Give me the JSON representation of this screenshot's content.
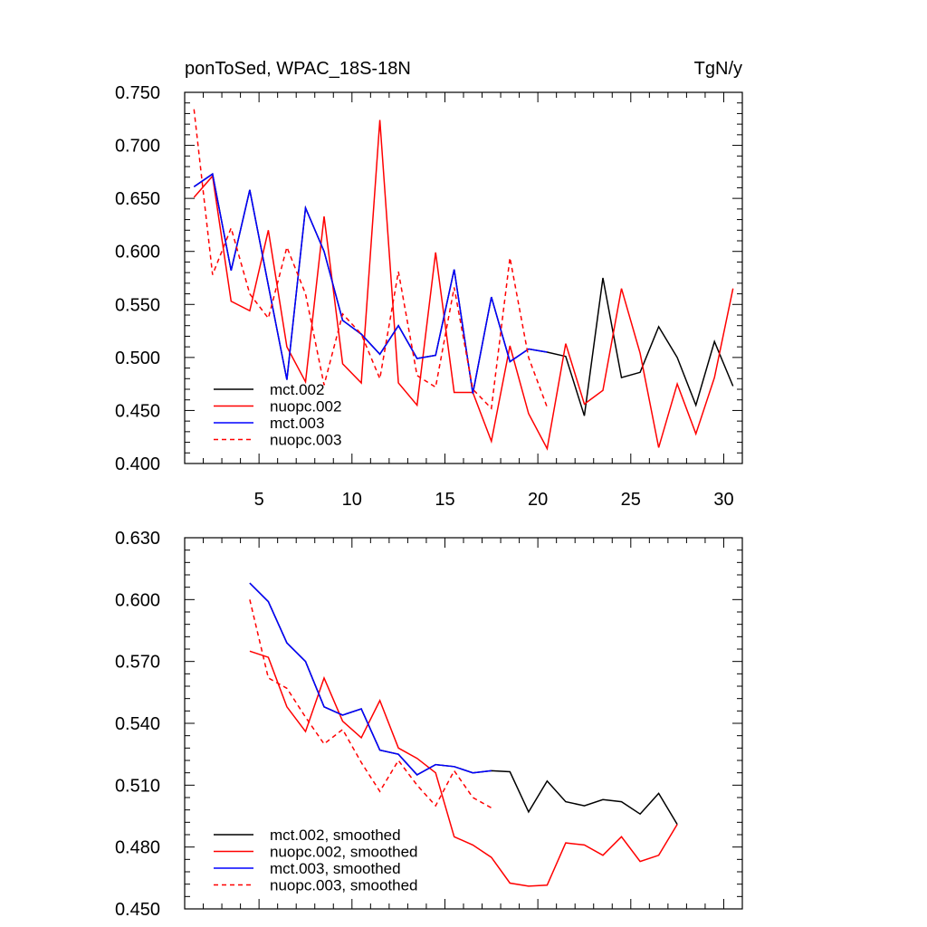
{
  "colors": {
    "mct002": "#000000",
    "nuopc002": "#ff0000",
    "mct003": "#0000ff",
    "nuopc003": "#ff0000"
  },
  "chart_data": [
    {
      "type": "line",
      "title": "ponToSed, WPAC_18S-18N",
      "units": "TgN/y",
      "xlim": [
        1,
        31
      ],
      "ylim": [
        0.4,
        0.75
      ],
      "yticks": [
        0.4,
        0.45,
        0.5,
        0.55,
        0.6,
        0.65,
        0.7,
        0.75
      ],
      "ytick_labels": [
        "0.400",
        "0.450",
        "0.500",
        "0.550",
        "0.600",
        "0.650",
        "0.700",
        "0.750"
      ],
      "xticks": [
        5,
        10,
        15,
        20,
        25,
        30
      ],
      "xtick_labels": [
        "5",
        "10",
        "15",
        "20",
        "25",
        "30"
      ],
      "legend_position": "bottom-left",
      "series": [
        {
          "name": "mct.002",
          "color": "#000000",
          "dash": "solid",
          "x": [
            1.5,
            2.5,
            3.5,
            4.5,
            5.5,
            6.5,
            7.5,
            8.5,
            9.5,
            10.5,
            11.5,
            12.5,
            13.5,
            14.5,
            15.5,
            16.5,
            17.5,
            18.5,
            19.5,
            20.5,
            21.5,
            22.5,
            23.5,
            24.5,
            25.5,
            26.5,
            27.5,
            28.5,
            29.5,
            30.5
          ],
          "values": [
            0.661,
            0.673,
            0.582,
            0.658,
            0.568,
            0.479,
            0.641,
            0.6,
            0.535,
            0.522,
            0.503,
            0.53,
            0.499,
            0.502,
            0.583,
            0.466,
            0.557,
            0.496,
            0.508,
            0.505,
            0.501,
            0.445,
            0.575,
            0.481,
            0.486,
            0.529,
            0.5,
            0.455,
            0.515,
            0.473
          ]
        },
        {
          "name": "nuopc.002",
          "color": "#ff0000",
          "dash": "solid",
          "x": [
            1.5,
            2.5,
            3.5,
            4.5,
            5.5,
            6.5,
            7.5,
            8.5,
            9.5,
            10.5,
            11.5,
            12.5,
            13.5,
            14.5,
            15.5,
            16.5,
            17.5,
            18.5,
            19.5,
            20.5,
            21.5,
            22.5,
            23.5,
            24.5,
            25.5,
            26.5,
            27.5,
            28.5,
            29.5,
            30.5
          ],
          "values": [
            0.651,
            0.671,
            0.553,
            0.544,
            0.62,
            0.51,
            0.477,
            0.633,
            0.494,
            0.476,
            0.724,
            0.476,
            0.455,
            0.599,
            0.467,
            0.467,
            0.421,
            0.511,
            0.447,
            0.414,
            0.513,
            0.456,
            0.469,
            0.565,
            0.504,
            0.415,
            0.475,
            0.428,
            0.481,
            0.565
          ]
        },
        {
          "name": "mct.003",
          "color": "#0000ff",
          "dash": "solid",
          "x": [
            1.5,
            2.5,
            3.5,
            4.5,
            5.5,
            6.5,
            7.5,
            8.5,
            9.5,
            10.5,
            11.5,
            12.5,
            13.5,
            14.5,
            15.5,
            16.5,
            17.5,
            18.5,
            19.5,
            20.5
          ],
          "values": [
            0.661,
            0.673,
            0.582,
            0.658,
            0.568,
            0.479,
            0.641,
            0.6,
            0.535,
            0.522,
            0.503,
            0.53,
            0.499,
            0.502,
            0.583,
            0.466,
            0.557,
            0.496,
            0.508,
            0.505
          ]
        },
        {
          "name": "nuopc.003",
          "color": "#ff0000",
          "dash": "dashed",
          "x": [
            1.5,
            2.5,
            3.5,
            4.5,
            5.5,
            6.5,
            7.5,
            8.5,
            9.5,
            10.5,
            11.5,
            12.5,
            13.5,
            14.5,
            15.5,
            16.5,
            17.5,
            18.5,
            19.5,
            20.5
          ],
          "values": [
            0.734,
            0.578,
            0.622,
            0.56,
            0.537,
            0.604,
            0.56,
            0.474,
            0.541,
            0.522,
            0.48,
            0.581,
            0.483,
            0.472,
            0.566,
            0.47,
            0.452,
            0.594,
            0.5,
            0.453
          ]
        }
      ]
    },
    {
      "type": "line",
      "title": "",
      "units": "",
      "xlim": [
        1,
        31
      ],
      "ylim": [
        0.45,
        0.63
      ],
      "yticks": [
        0.45,
        0.48,
        0.51,
        0.54,
        0.57,
        0.6,
        0.63
      ],
      "ytick_labels": [
        "0.450",
        "0.480",
        "0.510",
        "0.540",
        "0.570",
        "0.600",
        "0.630"
      ],
      "xticks": [
        5,
        10,
        15,
        20,
        25,
        30
      ],
      "xtick_labels": [],
      "legend_position": "bottom-left",
      "series": [
        {
          "name": "mct.002, smoothed",
          "color": "#000000",
          "dash": "solid",
          "x": [
            4.5,
            5.5,
            6.5,
            7.5,
            8.5,
            9.5,
            10.5,
            11.5,
            12.5,
            13.5,
            14.5,
            15.5,
            16.5,
            17.5,
            18.5,
            19.5,
            20.5,
            21.5,
            22.5,
            23.5,
            24.5,
            25.5,
            26.5,
            27.5
          ],
          "values": [
            0.608,
            0.599,
            0.579,
            0.57,
            0.548,
            0.544,
            0.547,
            0.527,
            0.525,
            0.515,
            0.52,
            0.519,
            0.516,
            0.517,
            0.5165,
            0.497,
            0.512,
            0.502,
            0.5,
            0.503,
            0.502,
            0.496,
            0.506,
            0.491
          ]
        },
        {
          "name": "nuopc.002, smoothed",
          "color": "#ff0000",
          "dash": "solid",
          "x": [
            4.5,
            5.5,
            6.5,
            7.5,
            8.5,
            9.5,
            10.5,
            11.5,
            12.5,
            13.5,
            14.5,
            15.5,
            16.5,
            17.5,
            18.5,
            19.5,
            20.5,
            21.5,
            22.5,
            23.5,
            24.5,
            25.5,
            26.5,
            27.5
          ],
          "values": [
            0.575,
            0.572,
            0.548,
            0.536,
            0.562,
            0.541,
            0.533,
            0.551,
            0.528,
            0.523,
            0.516,
            0.485,
            0.481,
            0.475,
            0.4625,
            0.461,
            0.4615,
            0.482,
            0.481,
            0.476,
            0.485,
            0.473,
            0.476,
            0.491
          ]
        },
        {
          "name": "mct.003, smoothed",
          "color": "#0000ff",
          "dash": "solid",
          "x": [
            4.5,
            5.5,
            6.5,
            7.5,
            8.5,
            9.5,
            10.5,
            11.5,
            12.5,
            13.5,
            14.5,
            15.5,
            16.5,
            17.5
          ],
          "values": [
            0.608,
            0.599,
            0.579,
            0.57,
            0.548,
            0.544,
            0.547,
            0.527,
            0.525,
            0.515,
            0.52,
            0.519,
            0.516,
            0.517
          ]
        },
        {
          "name": "nuopc.003, smoothed",
          "color": "#ff0000",
          "dash": "dashed",
          "x": [
            4.5,
            5.5,
            6.5,
            7.5,
            8.5,
            9.5,
            10.5,
            11.5,
            12.5,
            13.5,
            14.5,
            15.5,
            16.5,
            17.5
          ],
          "values": [
            0.6,
            0.562,
            0.557,
            0.543,
            0.53,
            0.537,
            0.521,
            0.507,
            0.522,
            0.51,
            0.5,
            0.517,
            0.504,
            0.499
          ]
        }
      ]
    }
  ]
}
